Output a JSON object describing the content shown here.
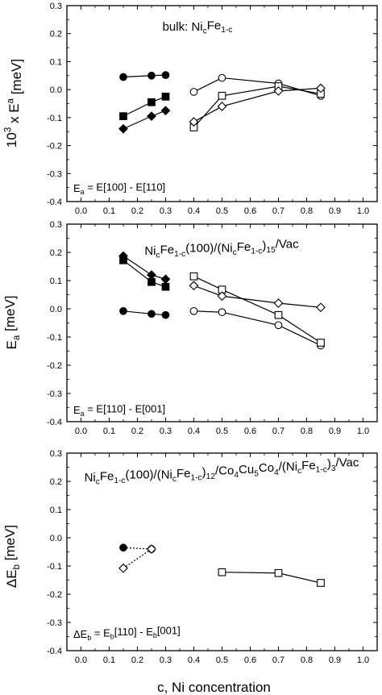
{
  "chart_data": [
    {
      "type": "line",
      "annotation": "bulk: NicFe1-c",
      "annotation_parts": [
        "bulk: Ni",
        "c",
        "Fe",
        "1-c"
      ],
      "equation": "Ea = E[100] - E[110]",
      "equation_parts": [
        "E",
        "a",
        " = E[100] - E[110]"
      ],
      "ylabel": "10^3 x Ea [meV]",
      "ylabel_parts": [
        "10",
        "3",
        " x E",
        "a",
        "  [meV]"
      ],
      "xlim": [
        -0.05,
        1.05
      ],
      "ylim": [
        -0.4,
        0.3
      ],
      "xticks": [
        "0.0",
        "0.1",
        "0.2",
        "0.3",
        "0.4",
        "0.5",
        "0.6",
        "0.7",
        "0.8",
        "0.9",
        "1.0"
      ],
      "yticks": [
        "-0.4",
        "-0.3",
        "-0.2",
        "-0.1",
        "0.0",
        "0.1",
        "0.2",
        "0.3"
      ],
      "grid": false,
      "series": [
        {
          "marker": "circle-filled",
          "points": [
            [
              0.15,
              0.045
            ],
            [
              0.25,
              0.05
            ],
            [
              0.3,
              0.052
            ]
          ]
        },
        {
          "marker": "square-filled",
          "points": [
            [
              0.15,
              -0.095
            ],
            [
              0.25,
              -0.045
            ],
            [
              0.3,
              -0.025
            ]
          ]
        },
        {
          "marker": "diamond-filled",
          "points": [
            [
              0.15,
              -0.14
            ],
            [
              0.25,
              -0.095
            ],
            [
              0.3,
              -0.075
            ]
          ]
        },
        {
          "marker": "circle-open",
          "points": [
            [
              0.4,
              -0.008
            ],
            [
              0.5,
              0.042
            ],
            [
              0.7,
              0.022
            ],
            [
              0.85,
              -0.022
            ]
          ]
        },
        {
          "marker": "square-open",
          "points": [
            [
              0.4,
              -0.135
            ],
            [
              0.5,
              -0.022
            ],
            [
              0.7,
              0.012
            ],
            [
              0.85,
              -0.015
            ]
          ]
        },
        {
          "marker": "diamond-open",
          "points": [
            [
              0.4,
              -0.115
            ],
            [
              0.5,
              -0.06
            ],
            [
              0.7,
              -0.005
            ],
            [
              0.85,
              0.005
            ]
          ]
        }
      ]
    },
    {
      "type": "line",
      "annotation": "NicFe1-c(100)/(NicFe1-c)15/Vac",
      "annotation_parts": [
        "Ni",
        "c",
        "Fe",
        "1-c",
        "(100)/(Ni",
        "c",
        "Fe",
        "1-c",
        ")",
        "15",
        "/Vac"
      ],
      "equation": "Ea = E[110] - E[001]",
      "equation_parts": [
        "E",
        "a",
        " = E[110] - E[001]"
      ],
      "ylabel": "Ea [meV]",
      "ylabel_parts": [
        "E",
        "a",
        "  [meV]"
      ],
      "xlim": [
        -0.05,
        1.05
      ],
      "ylim": [
        -0.4,
        0.3
      ],
      "xticks": [
        "0.0",
        "0.1",
        "0.2",
        "0.3",
        "0.4",
        "0.5",
        "0.6",
        "0.7",
        "0.8",
        "0.9",
        "1.0"
      ],
      "yticks": [
        "-0.4",
        "-0.3",
        "-0.2",
        "-0.1",
        "0.0",
        "0.1",
        "0.2",
        "0.3"
      ],
      "grid": false,
      "series": [
        {
          "marker": "circle-filled",
          "points": [
            [
              0.15,
              -0.008
            ],
            [
              0.25,
              -0.018
            ],
            [
              0.3,
              -0.022
            ]
          ]
        },
        {
          "marker": "square-filled",
          "points": [
            [
              0.15,
              0.172
            ],
            [
              0.25,
              0.095
            ],
            [
              0.3,
              0.078
            ]
          ]
        },
        {
          "marker": "diamond-filled",
          "points": [
            [
              0.15,
              0.187
            ],
            [
              0.25,
              0.12
            ],
            [
              0.3,
              0.105
            ]
          ]
        },
        {
          "marker": "circle-open",
          "points": [
            [
              0.4,
              -0.008
            ],
            [
              0.5,
              -0.012
            ],
            [
              0.7,
              -0.058
            ],
            [
              0.85,
              -0.13
            ]
          ]
        },
        {
          "marker": "square-open",
          "points": [
            [
              0.4,
              0.115
            ],
            [
              0.5,
              0.068
            ],
            [
              0.7,
              -0.022
            ],
            [
              0.85,
              -0.12
            ]
          ]
        },
        {
          "marker": "diamond-open",
          "points": [
            [
              0.4,
              0.082
            ],
            [
              0.5,
              0.045
            ],
            [
              0.7,
              0.02
            ],
            [
              0.85,
              0.005
            ]
          ]
        }
      ]
    },
    {
      "type": "line",
      "annotation": "NicFe1-c(100)/(NicFe1-c)12/Co4Cu5Co4/(NicFe1-c)3/Vac",
      "annotation_parts": [
        "Ni",
        "c",
        "Fe",
        "1-c",
        "(100)/(Ni",
        "c",
        "Fe",
        "1-c",
        ")",
        "12",
        "/Co",
        "4",
        "Cu",
        "5",
        "Co",
        "4",
        "/(Ni",
        "c",
        "Fe",
        "1-c",
        ")",
        "3",
        "/Vac"
      ],
      "equation": "ΔEb = Eb[110] - Eb[001]",
      "equation_parts": [
        "ΔE",
        "b",
        " = E",
        "b",
        "[110] - E",
        "b",
        "[001]"
      ],
      "ylabel": "ΔEb [meV]",
      "ylabel_parts": [
        "ΔE",
        "b",
        "  [meV]"
      ],
      "xlabel": "c, Ni concentration",
      "xlim": [
        -0.05,
        1.05
      ],
      "ylim": [
        -0.4,
        0.3
      ],
      "xticks": [
        "0.0",
        "0.1",
        "0.2",
        "0.3",
        "0.4",
        "0.5",
        "0.6",
        "0.7",
        "0.8",
        "0.9",
        "1.0"
      ],
      "yticks": [
        "-0.4",
        "-0.3",
        "-0.2",
        "-0.1",
        "0.0",
        "0.1",
        "0.2",
        "0.3"
      ],
      "grid": false,
      "series": [
        {
          "marker": "circle-filled",
          "dashed": true,
          "points": [
            [
              0.15,
              -0.035
            ],
            [
              0.25,
              -0.04
            ]
          ]
        },
        {
          "marker": "diamond-open",
          "dashed": true,
          "points": [
            [
              0.15,
              -0.108
            ],
            [
              0.25,
              -0.04
            ]
          ]
        },
        {
          "marker": "square-open",
          "points": [
            [
              0.5,
              -0.122
            ],
            [
              0.7,
              -0.125
            ],
            [
              0.85,
              -0.16
            ]
          ]
        }
      ]
    }
  ]
}
